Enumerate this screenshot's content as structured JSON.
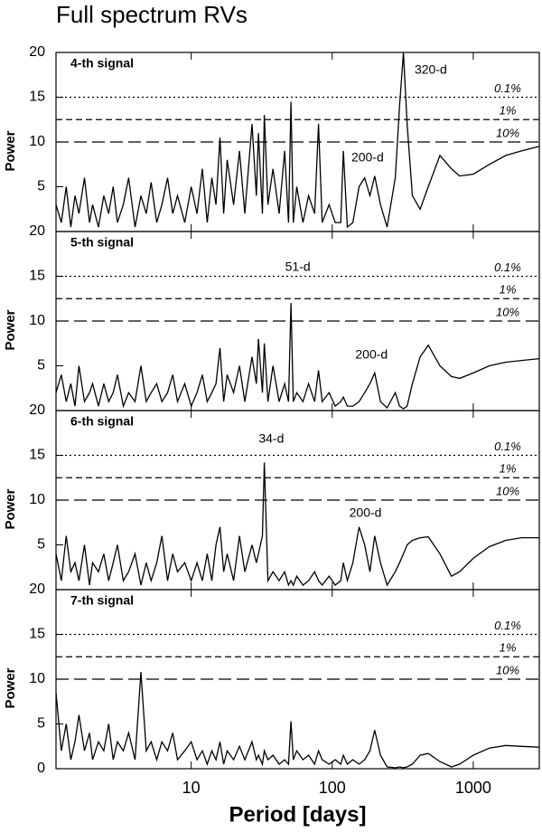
{
  "title": "Full spectrum RVs",
  "chart_data": [
    {
      "type": "line",
      "title": "4-th signal",
      "ylabel": "Power",
      "xscale": "log",
      "xlim": [
        1.1,
        2940
      ],
      "ylim": [
        0,
        20
      ],
      "yticks": [
        5,
        10,
        15,
        20
      ],
      "threshold_lines": [
        {
          "value": 15,
          "label": "0.1%",
          "dash": "dotted"
        },
        {
          "value": 12.5,
          "label": "1%",
          "dash": "dashed"
        },
        {
          "value": 10,
          "label": "10%",
          "dash": "longdash"
        }
      ],
      "annotations": [
        {
          "text": "320-d",
          "x": 500,
          "y": 18
        },
        {
          "text": "200-d",
          "x": 178,
          "y": 8.2
        }
      ],
      "color": "#000000",
      "x": [
        1.1,
        1.2,
        1.3,
        1.4,
        1.5,
        1.6,
        1.75,
        1.9,
        2.0,
        2.2,
        2.4,
        2.6,
        2.8,
        3.0,
        3.3,
        3.6,
        4.0,
        4.4,
        4.8,
        5.2,
        5.7,
        6.2,
        6.8,
        7.4,
        8.0,
        9.0,
        10,
        11,
        12,
        13,
        14,
        15,
        16,
        17,
        18,
        20,
        22,
        24,
        27,
        29,
        30,
        32,
        33,
        35,
        38,
        42,
        46,
        49,
        51,
        53,
        56,
        62,
        68,
        75,
        80,
        85,
        95,
        105,
        115,
        120,
        128,
        140,
        155,
        170,
        185,
        200,
        220,
        245,
        280,
        300,
        320,
        340,
        370,
        420,
        480,
        580,
        700,
        800,
        1000,
        1300,
        1700,
        2200,
        2940
      ],
      "values": [
        3,
        1,
        5,
        0.5,
        4,
        2,
        6,
        1,
        3,
        0.5,
        4,
        2,
        5,
        1,
        3,
        6,
        0.5,
        4,
        2,
        5.5,
        1,
        3,
        6,
        2,
        4,
        1,
        5,
        2,
        7,
        1,
        6,
        3,
        10.5,
        2,
        8,
        3,
        9,
        2,
        12,
        4,
        11,
        2,
        13,
        3,
        7,
        2,
        9,
        1,
        14.5,
        1,
        5,
        1,
        4,
        2,
        12,
        1,
        3,
        1,
        1,
        9,
        0.5,
        1,
        5,
        6,
        4,
        6.2,
        3,
        0.5,
        6,
        14,
        20,
        12,
        4,
        2.5,
        5,
        8.5,
        7,
        6.2,
        6.4,
        7.5,
        8.5,
        9,
        9.5
      ]
    },
    {
      "type": "line",
      "title": "5-th signal",
      "ylabel": "Power",
      "xscale": "log",
      "xlim": [
        1.1,
        2940
      ],
      "ylim": [
        0,
        20
      ],
      "yticks": [
        5,
        10,
        15,
        20
      ],
      "threshold_lines": [
        {
          "value": 15,
          "label": "0.1%",
          "dash": "dotted"
        },
        {
          "value": 12.5,
          "label": "1%",
          "dash": "dashed"
        },
        {
          "value": 10,
          "label": "10%",
          "dash": "longdash"
        }
      ],
      "annotations": [
        {
          "text": "51-d",
          "x": 57,
          "y": 16
        },
        {
          "text": "200-d",
          "x": 190,
          "y": 6.2
        }
      ],
      "color": "#000000",
      "x": [
        1.1,
        1.2,
        1.3,
        1.4,
        1.5,
        1.6,
        1.75,
        1.9,
        2.0,
        2.2,
        2.4,
        2.6,
        2.8,
        3.0,
        3.3,
        3.6,
        4.0,
        4.4,
        4.8,
        5.2,
        5.7,
        6.2,
        6.8,
        7.4,
        8.0,
        9.0,
        10,
        11,
        12,
        13,
        14,
        15,
        16,
        17,
        18,
        20,
        22,
        24,
        27,
        29,
        30,
        32,
        33,
        35,
        38,
        42,
        46,
        49,
        51,
        53,
        56,
        62,
        68,
        75,
        80,
        85,
        95,
        105,
        115,
        120,
        128,
        140,
        155,
        170,
        185,
        200,
        220,
        245,
        280,
        300,
        320,
        340,
        370,
        420,
        480,
        580,
        700,
        800,
        1000,
        1300,
        1700,
        2200,
        2940
      ],
      "values": [
        2,
        4,
        1,
        3,
        0.5,
        5,
        1,
        2,
        3,
        0.5,
        3,
        1,
        2,
        4,
        0.5,
        2,
        1,
        5,
        1,
        2,
        3,
        1,
        2,
        4,
        1,
        3,
        0.5,
        2,
        4,
        1,
        2,
        3,
        7,
        1,
        4,
        2,
        5,
        1,
        6,
        3,
        8,
        2,
        7.5,
        1,
        5,
        1,
        3,
        1,
        12,
        1,
        2,
        1,
        3,
        1,
        4.5,
        1,
        2,
        0.5,
        1,
        1.5,
        0.5,
        0.5,
        1,
        2,
        3,
        4.2,
        1,
        0.3,
        2,
        0.5,
        0.2,
        0.5,
        3,
        6,
        7.3,
        5,
        3.8,
        3.6,
        4.2,
        5,
        5.4,
        5.6,
        5.8
      ]
    },
    {
      "type": "line",
      "title": "6-th signal",
      "ylabel": "Power",
      "xscale": "log",
      "xlim": [
        1.1,
        2940
      ],
      "ylim": [
        0,
        20
      ],
      "yticks": [
        5,
        10,
        15,
        20
      ],
      "threshold_lines": [
        {
          "value": 15,
          "label": "0.1%",
          "dash": "dotted"
        },
        {
          "value": 12.5,
          "label": "1%",
          "dash": "dashed"
        },
        {
          "value": 10,
          "label": "10%",
          "dash": "longdash"
        }
      ],
      "annotations": [
        {
          "text": "34-d",
          "x": 37,
          "y": 16.8
        },
        {
          "text": "200-d",
          "x": 172,
          "y": 8.5
        }
      ],
      "color": "#000000",
      "x": [
        1.1,
        1.2,
        1.3,
        1.4,
        1.5,
        1.6,
        1.75,
        1.9,
        2.0,
        2.2,
        2.4,
        2.6,
        2.8,
        3.0,
        3.3,
        3.6,
        4.0,
        4.4,
        4.8,
        5.2,
        5.7,
        6.2,
        6.8,
        7.4,
        8.0,
        9.0,
        10,
        11,
        12,
        13,
        14,
        15,
        16,
        17,
        18,
        20,
        22,
        24,
        27,
        29,
        30,
        32,
        33,
        35,
        38,
        42,
        46,
        49,
        51,
        53,
        56,
        62,
        68,
        75,
        80,
        85,
        95,
        105,
        115,
        120,
        128,
        140,
        155,
        170,
        185,
        200,
        220,
        245,
        280,
        300,
        320,
        340,
        370,
        420,
        480,
        580,
        700,
        800,
        1000,
        1300,
        1700,
        2200,
        2940
      ],
      "values": [
        4,
        1,
        6,
        2,
        3,
        1,
        5,
        0.5,
        3,
        2,
        4,
        1,
        3,
        5,
        1,
        2,
        4,
        0.5,
        3,
        1,
        3,
        6,
        1,
        4,
        2,
        3,
        1,
        3,
        1,
        4,
        1,
        5,
        7,
        2,
        4,
        1,
        6,
        2,
        5,
        3,
        4,
        6,
        14.2,
        1,
        2,
        1,
        2,
        0.5,
        1,
        0.5,
        1.5,
        0.5,
        1,
        2,
        1,
        0.5,
        1.5,
        0.5,
        1,
        3,
        1,
        3,
        7,
        5,
        2,
        6,
        3,
        0.5,
        2,
        3,
        4,
        5,
        5.5,
        5.8,
        5.9,
        4,
        1.5,
        2,
        3.5,
        4.8,
        5.5,
        5.8,
        5.8
      ]
    },
    {
      "type": "line",
      "title": "7-th signal",
      "ylabel": "Power",
      "xlabel": "Period [days]",
      "xscale": "log",
      "xlim": [
        1.1,
        2940
      ],
      "ylim": [
        0,
        20
      ],
      "yticks": [
        0,
        5,
        10,
        15,
        20
      ],
      "xticks": [
        10,
        100,
        1000
      ],
      "threshold_lines": [
        {
          "value": 15,
          "label": "0.1%",
          "dash": "dotted"
        },
        {
          "value": 12.5,
          "label": "1%",
          "dash": "dashed"
        },
        {
          "value": 10,
          "label": "10%",
          "dash": "longdash"
        }
      ],
      "annotations": [],
      "color": "#000000",
      "x": [
        1.1,
        1.2,
        1.3,
        1.4,
        1.5,
        1.6,
        1.75,
        1.9,
        2.0,
        2.2,
        2.4,
        2.6,
        2.8,
        3.0,
        3.3,
        3.6,
        4.0,
        4.4,
        4.8,
        5.2,
        5.7,
        6.2,
        6.8,
        7.4,
        8.0,
        9.0,
        10,
        11,
        12,
        13,
        14,
        15,
        16,
        17,
        18,
        20,
        22,
        24,
        27,
        29,
        30,
        32,
        33,
        35,
        38,
        42,
        46,
        49,
        51,
        53,
        56,
        62,
        68,
        75,
        80,
        85,
        95,
        105,
        115,
        120,
        128,
        140,
        155,
        170,
        185,
        200,
        220,
        245,
        280,
        300,
        320,
        340,
        370,
        420,
        480,
        580,
        700,
        800,
        1000,
        1300,
        1700,
        2200,
        2940
      ],
      "values": [
        8.5,
        2,
        5,
        1,
        3,
        6,
        2,
        4,
        1,
        3,
        2,
        5,
        1,
        3,
        2,
        4,
        1,
        10.8,
        2,
        3,
        1,
        3,
        2,
        4,
        1,
        2,
        3,
        1,
        2,
        0.5,
        2,
        1,
        3,
        0.5,
        2,
        1,
        2.5,
        1,
        3,
        1,
        1.5,
        0.5,
        2,
        1,
        1.5,
        0.5,
        1,
        0.5,
        5.3,
        1,
        2,
        1,
        1.5,
        0.5,
        2,
        1,
        0.5,
        1,
        0.5,
        1.5,
        0.5,
        1,
        0.5,
        1,
        2,
        4.3,
        1.5,
        0.2,
        0.1,
        0.2,
        0.1,
        0.2,
        0.5,
        1.5,
        1.7,
        0.8,
        0.2,
        0.5,
        1.5,
        2.3,
        2.6,
        2.5,
        2.4
      ]
    }
  ]
}
